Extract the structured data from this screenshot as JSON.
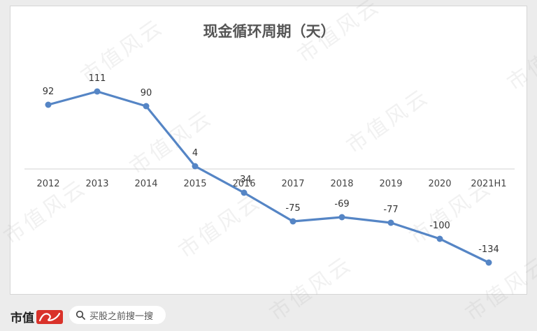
{
  "chart_data": {
    "type": "line",
    "title": "现金循环周期（天）",
    "categories": [
      "2012",
      "2013",
      "2014",
      "2015",
      "2016",
      "2017",
      "2018",
      "2019",
      "2020",
      "2021H1"
    ],
    "values": [
      92,
      111,
      90,
      4,
      -34,
      -75,
      -69,
      -77,
      -100,
      -134
    ],
    "data_labels": [
      "92",
      "111",
      "90",
      "4",
      "-34",
      "-75",
      "-69",
      "-77",
      "-100",
      "-134"
    ],
    "ylim": [
      -150,
      130
    ],
    "line_color": "#5585c5",
    "grid": false,
    "legend": "none"
  },
  "watermark": "市值风云",
  "footer": {
    "logo_text": "市值",
    "logo_mark_text": "风云",
    "search_placeholder": "买股之前搜一搜"
  }
}
